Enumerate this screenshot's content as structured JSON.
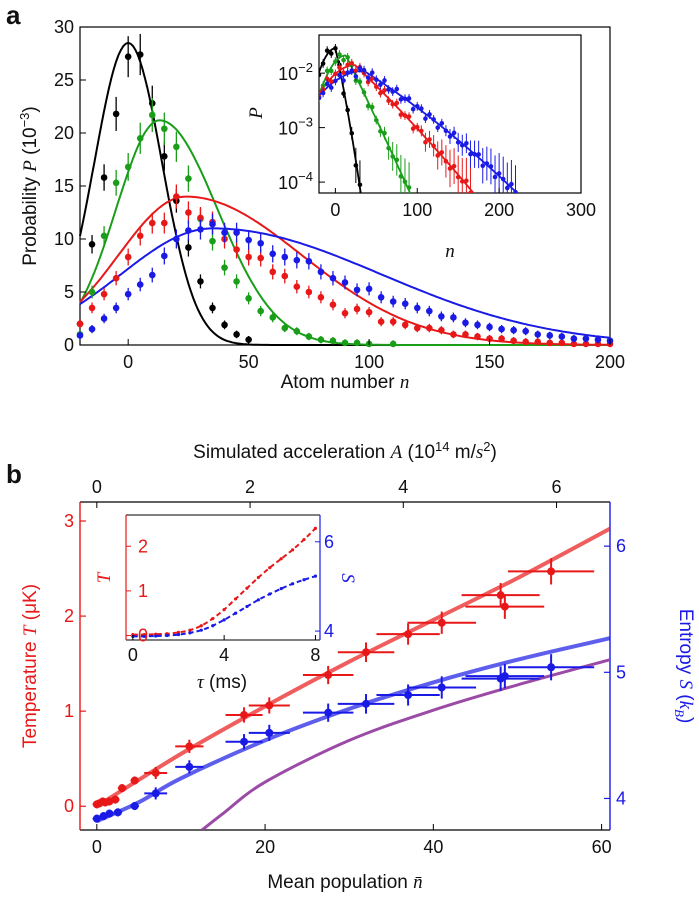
{
  "figure": {
    "panel_a_label": "a",
    "panel_b_label": "b",
    "colors": {
      "black": "#000000",
      "green": "#1a9e1a",
      "red": "#e81818",
      "blue": "#1a1ae6",
      "purple": "#9b4aa6",
      "axis": "#000000"
    }
  },
  "chart_data": [
    {
      "id": "a-main",
      "type": "scatter",
      "ylabel_prefix": "Probability ",
      "ylabel_symbol": "P",
      "ylabel_unit_open": " (10",
      "ylabel_unit_exp": "−3",
      "ylabel_unit_close": ")",
      "xlabel_prefix": "Atom number ",
      "xlabel_symbol": "n",
      "xlim": [
        -20,
        200
      ],
      "ylim": [
        0,
        30
      ],
      "xticks": [
        0,
        50,
        100,
        150,
        200
      ],
      "yticks": [
        0,
        5,
        10,
        15,
        20,
        25,
        30
      ],
      "series": [
        {
          "color": "black",
          "points": [
            [
              -20,
              2
            ],
            [
              -15,
              9.5
            ],
            [
              -10,
              15.8
            ],
            [
              -5,
              21.8
            ],
            [
              0,
              27.2
            ],
            [
              5,
              27.4
            ],
            [
              10,
              22.8
            ],
            [
              15,
              17.8
            ],
            [
              20,
              13.6
            ],
            [
              25,
              9.2
            ],
            [
              30,
              6
            ],
            [
              35,
              3.5
            ],
            [
              40,
              1.9
            ],
            [
              45,
              1
            ],
            [
              50,
              0.5
            ]
          ],
          "fit": {
            "kind": "gauss",
            "mu": 0,
            "sigma": 14,
            "amp": 28.5,
            "xmin": -20,
            "xmax": 200
          }
        },
        {
          "color": "green",
          "points": [
            [
              -20,
              1
            ],
            [
              -15,
              5
            ],
            [
              -10,
              10.3
            ],
            [
              -5,
              15.3
            ],
            [
              0,
              16.8
            ],
            [
              5,
              19.5
            ],
            [
              10,
              21.7
            ],
            [
              15,
              20.4
            ],
            [
              20,
              18.7
            ],
            [
              25,
              15.7
            ],
            [
              30,
              11.9
            ],
            [
              35,
              9.8
            ],
            [
              40,
              7.3
            ],
            [
              45,
              6
            ],
            [
              50,
              4.4
            ],
            [
              55,
              3.2
            ],
            [
              60,
              2.6
            ],
            [
              65,
              1.6
            ],
            [
              70,
              1.3
            ],
            [
              75,
              0.8
            ],
            [
              80,
              0.5
            ],
            [
              85,
              0.4
            ],
            [
              90,
              0.2
            ],
            [
              95,
              0.2
            ],
            [
              100,
              0.1
            ],
            [
              110,
              0.1
            ]
          ],
          "fit": {
            "kind": "skew",
            "mode": 13,
            "amp": 21.2,
            "sl": 18,
            "sr": 24,
            "xmin": -20,
            "xmax": 200
          }
        },
        {
          "color": "red",
          "points": [
            [
              -20,
              2
            ],
            [
              -15,
              3.5
            ],
            [
              -10,
              4.8
            ],
            [
              -5,
              6.3
            ],
            [
              0,
              8.3
            ],
            [
              5,
              10.3
            ],
            [
              10,
              11.5
            ],
            [
              15,
              11.5
            ],
            [
              20,
              14
            ],
            [
              25,
              12.5
            ],
            [
              30,
              12
            ],
            [
              35,
              11.6
            ],
            [
              40,
              10
            ],
            [
              45,
              9
            ],
            [
              50,
              8.3
            ],
            [
              55,
              8.2
            ],
            [
              60,
              6.9
            ],
            [
              65,
              6.5
            ],
            [
              70,
              5.5
            ],
            [
              75,
              5
            ],
            [
              80,
              4.5
            ],
            [
              85,
              3.8
            ],
            [
              90,
              3
            ],
            [
              95,
              3.4
            ],
            [
              100,
              3.1
            ],
            [
              105,
              2.2
            ],
            [
              110,
              2.2
            ],
            [
              115,
              1.9
            ],
            [
              120,
              1.6
            ],
            [
              125,
              1.6
            ],
            [
              130,
              1.4
            ],
            [
              135,
              1
            ],
            [
              140,
              1
            ],
            [
              145,
              0.8
            ],
            [
              150,
              0.6
            ],
            [
              155,
              0.6
            ],
            [
              160,
              0.4
            ],
            [
              165,
              0.3
            ],
            [
              170,
              0.3
            ],
            [
              175,
              0.2
            ],
            [
              180,
              0.2
            ],
            [
              185,
              0.1
            ],
            [
              190,
              0.1
            ],
            [
              195,
              0.1
            ],
            [
              200,
              0.1
            ]
          ],
          "fit": {
            "kind": "skew",
            "mode": 24,
            "amp": 14,
            "sl": 28,
            "sr": 48,
            "xmin": -20,
            "xmax": 200
          }
        },
        {
          "color": "blue",
          "points": [
            [
              -20,
              0.9
            ],
            [
              -15,
              1.5
            ],
            [
              -10,
              2.5
            ],
            [
              -5,
              3.5
            ],
            [
              0,
              4.8
            ],
            [
              5,
              5.7
            ],
            [
              10,
              6.6
            ],
            [
              15,
              8.4
            ],
            [
              20,
              10
            ],
            [
              25,
              10.8
            ],
            [
              30,
              10.9
            ],
            [
              35,
              11.4
            ],
            [
              40,
              10.6
            ],
            [
              45,
              10.6
            ],
            [
              50,
              9.9
            ],
            [
              55,
              9.6
            ],
            [
              60,
              8.6
            ],
            [
              65,
              8.3
            ],
            [
              70,
              8
            ],
            [
              75,
              7.9
            ],
            [
              80,
              6.9
            ],
            [
              85,
              6.3
            ],
            [
              90,
              5.9
            ],
            [
              95,
              5.2
            ],
            [
              100,
              5.3
            ],
            [
              105,
              4.5
            ],
            [
              110,
              4.1
            ],
            [
              115,
              3.9
            ],
            [
              120,
              3.5
            ],
            [
              125,
              3.2
            ],
            [
              130,
              2.7
            ],
            [
              135,
              2.6
            ],
            [
              140,
              2.1
            ],
            [
              145,
              1.9
            ],
            [
              150,
              1.7
            ],
            [
              155,
              1.5
            ],
            [
              160,
              1.4
            ],
            [
              165,
              1.3
            ],
            [
              170,
              1
            ],
            [
              175,
              0.9
            ],
            [
              180,
              0.8
            ],
            [
              185,
              0.6
            ],
            [
              190,
              0.6
            ],
            [
              195,
              0.5
            ],
            [
              200,
              0.4
            ]
          ],
          "fit": {
            "kind": "skew",
            "mode": 35,
            "amp": 11,
            "sl": 38,
            "sr": 70,
            "xmin": -20,
            "xmax": 200
          }
        }
      ]
    },
    {
      "id": "a-inset",
      "type": "scatter",
      "scale_y": "log",
      "ylabel_symbol": "P",
      "xlabel_symbol": "n",
      "xlim": [
        -20,
        300
      ],
      "ylim_log10": [
        -4.2,
        -1.3
      ],
      "xticks": [
        0,
        100,
        200,
        300
      ],
      "yticks_log10": [
        -2,
        -3,
        -4
      ],
      "ytick_labels": [
        [
          "10",
          "−2"
        ],
        [
          "10",
          "−3"
        ],
        [
          "10",
          "−4"
        ]
      ]
    },
    {
      "id": "b-main",
      "type": "scatter",
      "xlabel_prefix": "Mean population ",
      "xlabel_symbol": "n̄",
      "top_label_prefix": "Simulated acceleration ",
      "top_label_symbol": "A",
      "top_label_unit": "(10",
      "top_label_exp": "14",
      "top_label_unit2": " m/",
      "top_label_sym2": "s",
      "top_label_exp2": "2",
      "top_label_close": ")",
      "ylabel_left_prefix": "Temperature ",
      "ylabel_left_symbol": "T",
      "ylabel_left_unit": " (μK)",
      "ylabel_right_prefix": "Entropy ",
      "ylabel_right_symbol": "S",
      "ylabel_right_unit_open": " (",
      "ylabel_right_unit_sym": "k",
      "ylabel_right_unit_sub": "B",
      "ylabel_right_unit_close": ")",
      "xlim": [
        -2,
        61
      ],
      "xticks": [
        0,
        20,
        40,
        60
      ],
      "top_xticks": [
        0,
        2,
        4,
        6
      ],
      "top_per_bottom": 0.1098,
      "ylim_left": [
        -0.25,
        3.2
      ],
      "yticks_left": [
        0,
        1,
        2,
        3
      ],
      "ylim_right": [
        3.75,
        6.35
      ],
      "yticks_right": [
        4,
        5,
        6
      ],
      "temperature_points": [
        [
          0,
          0.02
        ],
        [
          0.3,
          0.03
        ],
        [
          0.7,
          0.05
        ],
        [
          1,
          0.04
        ],
        [
          1.5,
          0.05
        ],
        [
          2.2,
          0.07
        ],
        [
          3,
          0.19
        ],
        [
          4.5,
          0.27
        ],
        [
          7,
          0.35
        ],
        [
          11,
          0.63
        ],
        [
          17.5,
          0.96
        ],
        [
          20.5,
          1.06
        ],
        [
          27.5,
          1.38
        ],
        [
          32,
          1.62
        ],
        [
          37,
          1.81
        ],
        [
          41,
          1.93
        ],
        [
          48,
          2.22
        ],
        [
          48.5,
          2.1
        ],
        [
          54,
          2.47
        ]
      ],
      "entropy_points": [
        [
          0,
          3.84
        ],
        [
          0.8,
          3.86
        ],
        [
          1.5,
          3.88
        ],
        [
          2.5,
          3.89
        ],
        [
          4.5,
          3.94
        ],
        [
          7,
          4.04
        ],
        [
          11,
          4.25
        ],
        [
          17.5,
          4.45
        ],
        [
          20.5,
          4.52
        ],
        [
          27.5,
          4.68
        ],
        [
          32,
          4.75
        ],
        [
          37,
          4.82
        ],
        [
          41,
          4.88
        ],
        [
          48,
          4.95
        ],
        [
          48.5,
          4.97
        ],
        [
          54,
          5.04
        ]
      ],
      "temperature_fit": [
        [
          0,
          0
        ],
        [
          10,
          0.55
        ],
        [
          20,
          1.05
        ],
        [
          30,
          1.52
        ],
        [
          40,
          1.96
        ],
        [
          50,
          2.4
        ],
        [
          61,
          2.92
        ]
      ],
      "entropy_fit": [
        [
          0,
          3.82
        ],
        [
          5,
          3.97
        ],
        [
          10,
          4.16
        ],
        [
          20,
          4.46
        ],
        [
          30,
          4.71
        ],
        [
          40,
          4.92
        ],
        [
          50,
          5.1
        ],
        [
          61,
          5.27
        ]
      ],
      "entropy_theory": [
        [
          12.5,
          3.75
        ],
        [
          15,
          3.88
        ],
        [
          20,
          4.13
        ],
        [
          30,
          4.46
        ],
        [
          40,
          4.7
        ],
        [
          50,
          4.9
        ],
        [
          61,
          5.1
        ]
      ]
    },
    {
      "id": "b-inset",
      "type": "line",
      "xlabel_symbol": "τ",
      "xlabel_unit": " (ms)",
      "ylabel_left_symbol": "T",
      "ylabel_right_symbol": "S",
      "xlim": [
        -0.3,
        8.2
      ],
      "xticks": [
        0,
        4,
        8
      ],
      "ylim_left": [
        -0.1,
        2.7
      ],
      "yticks_left": [
        0,
        1,
        2
      ],
      "ylim_right": [
        3.8,
        6.6
      ],
      "yticks_right": [
        4,
        6
      ],
      "temperature": [
        [
          0,
          0.02
        ],
        [
          0.5,
          0.02
        ],
        [
          1,
          0.03
        ],
        [
          1.5,
          0.04
        ],
        [
          2,
          0.07
        ],
        [
          2.5,
          0.12
        ],
        [
          3,
          0.22
        ],
        [
          3.5,
          0.38
        ],
        [
          4,
          0.58
        ],
        [
          4.5,
          0.82
        ],
        [
          5,
          1.06
        ],
        [
          5.5,
          1.3
        ],
        [
          6,
          1.52
        ],
        [
          6.5,
          1.72
        ],
        [
          7,
          1.92
        ],
        [
          7.5,
          2.15
        ],
        [
          8,
          2.4
        ]
      ],
      "entropy": [
        [
          0,
          3.88
        ],
        [
          0.5,
          3.88
        ],
        [
          1,
          3.89
        ],
        [
          1.5,
          3.9
        ],
        [
          2,
          3.92
        ],
        [
          2.5,
          3.96
        ],
        [
          3,
          4.02
        ],
        [
          3.5,
          4.12
        ],
        [
          4,
          4.25
        ],
        [
          4.5,
          4.4
        ],
        [
          5,
          4.55
        ],
        [
          5.5,
          4.7
        ],
        [
          6,
          4.83
        ],
        [
          6.5,
          4.95
        ],
        [
          7,
          5.06
        ],
        [
          7.5,
          5.15
        ],
        [
          8,
          5.23
        ]
      ]
    }
  ]
}
